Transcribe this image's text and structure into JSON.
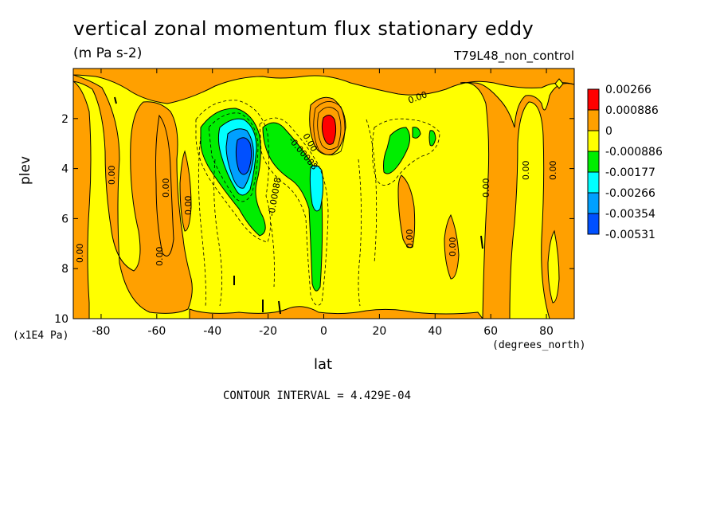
{
  "chart_data": {
    "type": "heatmap",
    "title": "vertical zonal momentum flux stationary eddy",
    "units": "(m Pa s-2)",
    "dataset": "T79L48_non_control",
    "xlabel": "lat",
    "xunits": "(degrees_north)",
    "ylabel": "plev",
    "yunits": "(x1E4 Pa)",
    "xlim": [
      -90,
      90
    ],
    "ylim": [
      10,
      0
    ],
    "x_ticks": [
      "-80",
      "-60",
      "-40",
      "-20",
      "0",
      "20",
      "40",
      "60",
      "80"
    ],
    "x_tick_values": [
      -80,
      -60,
      -40,
      -20,
      0,
      20,
      40,
      60,
      80
    ],
    "y_ticks": [
      "2",
      "4",
      "6",
      "8",
      "10"
    ],
    "y_tick_values": [
      2,
      4,
      6,
      8,
      10
    ],
    "contour_interval": "CONTOUR INTERVAL = 4.429E-04",
    "legend": {
      "placement": "right",
      "levels": [
        "0.00266",
        "0.000886",
        "0",
        "-0.000886",
        "-0.00177",
        "-0.00266",
        "-0.00354",
        "-0.00531"
      ],
      "colors": [
        "#ff0000",
        "#ffa000",
        "#ffff00",
        "#00ee00",
        "#00ffff",
        "#00a0ff",
        "#0050ff"
      ]
    },
    "contour_labels": [
      "0.00",
      "0.00",
      "0.00",
      "0.00",
      "0.00",
      "0.00",
      "0.00",
      "0.00",
      "0.00",
      "0.00",
      "0.00",
      "0.00",
      "-0.00088",
      "-0.00088"
    ],
    "features": [
      {
        "name": "negative-max",
        "lat": -28,
        "plev": 3.8,
        "level": "-0.00531"
      },
      {
        "name": "positive-max",
        "lat": 2,
        "plev": 2.5,
        "level": "0.00266"
      }
    ]
  }
}
